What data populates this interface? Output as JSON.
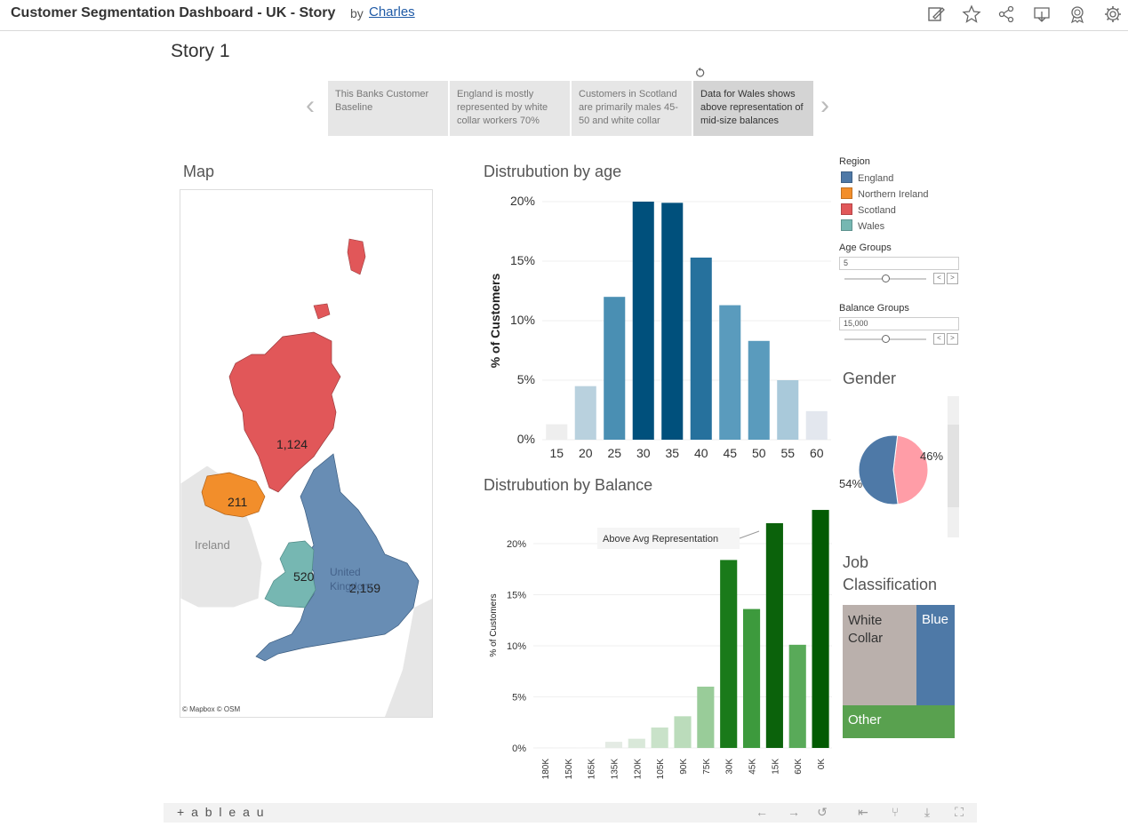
{
  "header": {
    "title": "Customer Segmentation Dashboard - UK - Story",
    "by": "by",
    "author": "Charles"
  },
  "story": {
    "title": "Story 1",
    "points": [
      "This Banks Customer Baseline",
      "England is mostly represented by white collar workers 70%",
      "Customers in Scotland are primarily males 45-50 and white collar",
      "Data for Wales shows above representation of mid-size balances"
    ],
    "active_index": 3
  },
  "map": {
    "title": "Map",
    "labels": {
      "scotland": "1,124",
      "northern_ireland": "211",
      "wales": "520",
      "england": "2,159",
      "ireland": "Ireland",
      "uk": "United Kingdom"
    },
    "credit": "© Mapbox  © OSM"
  },
  "legend": {
    "title": "Region",
    "items": [
      {
        "label": "England",
        "color": "#4e79a7"
      },
      {
        "label": "Northern Ireland",
        "color": "#f28e2b"
      },
      {
        "label": "Scotland",
        "color": "#e15759"
      },
      {
        "label": "Wales",
        "color": "#76b7b2"
      }
    ]
  },
  "params": {
    "age_groups": {
      "label": "Age Groups",
      "value": "5",
      "slider_fraction": 0.4
    },
    "balance_groups": {
      "label": "Balance Groups",
      "value": "15,000",
      "slider_fraction": 0.4
    }
  },
  "gender": {
    "title": "Gender",
    "slices": [
      {
        "label": "54%",
        "value": 54,
        "color": "#4e79a7"
      },
      {
        "label": "46%",
        "value": 46,
        "color": "#ff9da7"
      }
    ]
  },
  "job": {
    "title": "Job Classification",
    "cells": [
      {
        "label": "White Collar",
        "color": "#bab0ac"
      },
      {
        "label": "Blue",
        "color": "#4e79a7"
      },
      {
        "label": "Other",
        "color": "#59a14f"
      }
    ]
  },
  "footer": {
    "logo": "+ a b l e a u"
  },
  "chart_data": [
    {
      "type": "bar",
      "title": "Distrubution by age",
      "ylabel": "% of Customers",
      "categories": [
        "15",
        "20",
        "25",
        "30",
        "35",
        "40",
        "45",
        "50",
        "55",
        "60"
      ],
      "values": [
        1.3,
        4.5,
        12.0,
        20.0,
        19.9,
        15.3,
        11.3,
        8.3,
        5.0,
        2.4
      ],
      "colors": [
        "#eeeeee",
        "#b9d1de",
        "#4a8fb3",
        "#00507c",
        "#00507c",
        "#26719d",
        "#5a9bbd",
        "#5a9bbd",
        "#a9c9da",
        "#e3e7ee"
      ],
      "ylim": [
        0,
        20
      ],
      "yticks": [
        "0%",
        "5%",
        "10%",
        "15%",
        "20%"
      ],
      "ytick_values": [
        0,
        5,
        10,
        15,
        20
      ]
    },
    {
      "type": "bar",
      "title": "Distrubution by Balance",
      "ylabel": "% of Customers",
      "categories": [
        "180K",
        "150K",
        "165K",
        "135K",
        "120K",
        "105K",
        "90K",
        "75K",
        "30K",
        "45K",
        "15K",
        "60K",
        "0K"
      ],
      "values": [
        0.05,
        0.05,
        0.05,
        0.6,
        0.9,
        2.0,
        3.1,
        6.0,
        18.4,
        13.6,
        22.0,
        10.1,
        23.3
      ],
      "colors": [
        "#f0f0f0",
        "#f0f0f0",
        "#f0f0f0",
        "#e4ebe4",
        "#d9e8d9",
        "#c9e2c9",
        "#bbdcbb",
        "#99cc99",
        "#1a7a1a",
        "#3d9a3d",
        "#0b620b",
        "#59aa59",
        "#035b03"
      ],
      "ylim": [
        0,
        24
      ],
      "yticks": [
        "0%",
        "5%",
        "10%",
        "15%",
        "20%"
      ],
      "ytick_values": [
        0,
        5,
        10,
        15,
        20
      ],
      "annotation": "Above Avg Representation"
    }
  ]
}
